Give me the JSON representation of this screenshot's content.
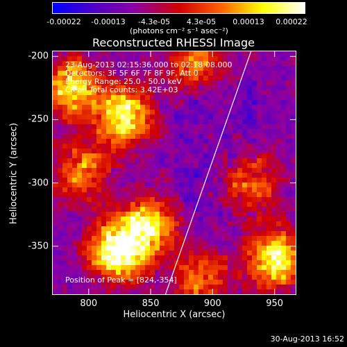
{
  "colorbar": {
    "ticks": [
      "-0.00022",
      "-0.00013",
      "-4.3e-05",
      "4.3e-05",
      "0.00013",
      "0.00022"
    ],
    "unit": "(photons cm⁻² s⁻¹ asec⁻²)",
    "colors": [
      "#0000ff",
      "#5000c8",
      "#9000a0",
      "#d00000",
      "#ff6000",
      "#ffff00",
      "#ffffff"
    ]
  },
  "title": "Reconstructed RHESSI Image",
  "annotations": {
    "line1": "23-Aug-2013 02:15:36.000 to 02:18:08.000",
    "line2": "Detectors: 3F 5F 6F 7F 8F 9F, Att 0",
    "line3": "Energy Range: 25.0 - 50.0 keV",
    "line4": "Clean     Total counts: 3.42E+03",
    "peak": "Position of Peak = [824,-354]"
  },
  "axes": {
    "xlabel": "Heliocentric X (arcsec)",
    "ylabel": "Heliocentric Y (arcsec)",
    "xticks": [
      "800",
      "850",
      "900",
      "950"
    ],
    "yticks": [
      "-200",
      "-250",
      "-300",
      "-350"
    ]
  },
  "chart_data": {
    "type": "heatmap",
    "title": "Reconstructed RHESSI Image",
    "xlabel": "Heliocentric X (arcsec)",
    "ylabel": "Heliocentric Y (arcsec)",
    "xlim": [
      771,
      967
    ],
    "ylim": [
      -388,
      -196
    ],
    "xticks": [
      800,
      850,
      900,
      950
    ],
    "yticks": [
      -200,
      -250,
      -300,
      -350
    ],
    "color_range": [
      -0.00022,
      0.00022
    ],
    "limb_line": [
      [
        862,
        -388
      ],
      [
        931,
        -196
      ]
    ],
    "peak": [
      824,
      -354
    ],
    "bright_regions": [
      {
        "x": 824,
        "y": -354,
        "level": 1.0
      },
      {
        "x": 785,
        "y": -225,
        "level": 0.85
      },
      {
        "x": 828,
        "y": -248,
        "level": 0.9
      },
      {
        "x": 848,
        "y": -335,
        "level": 0.8
      },
      {
        "x": 950,
        "y": -360,
        "level": 0.9
      },
      {
        "x": 885,
        "y": -205,
        "level": 0.55
      },
      {
        "x": 930,
        "y": -300,
        "level": 0.55
      },
      {
        "x": 795,
        "y": -290,
        "level": 0.6
      },
      {
        "x": 890,
        "y": -375,
        "level": 0.55
      }
    ]
  },
  "footer": {
    "datestamp": "30-Aug-2013 16:52"
  }
}
